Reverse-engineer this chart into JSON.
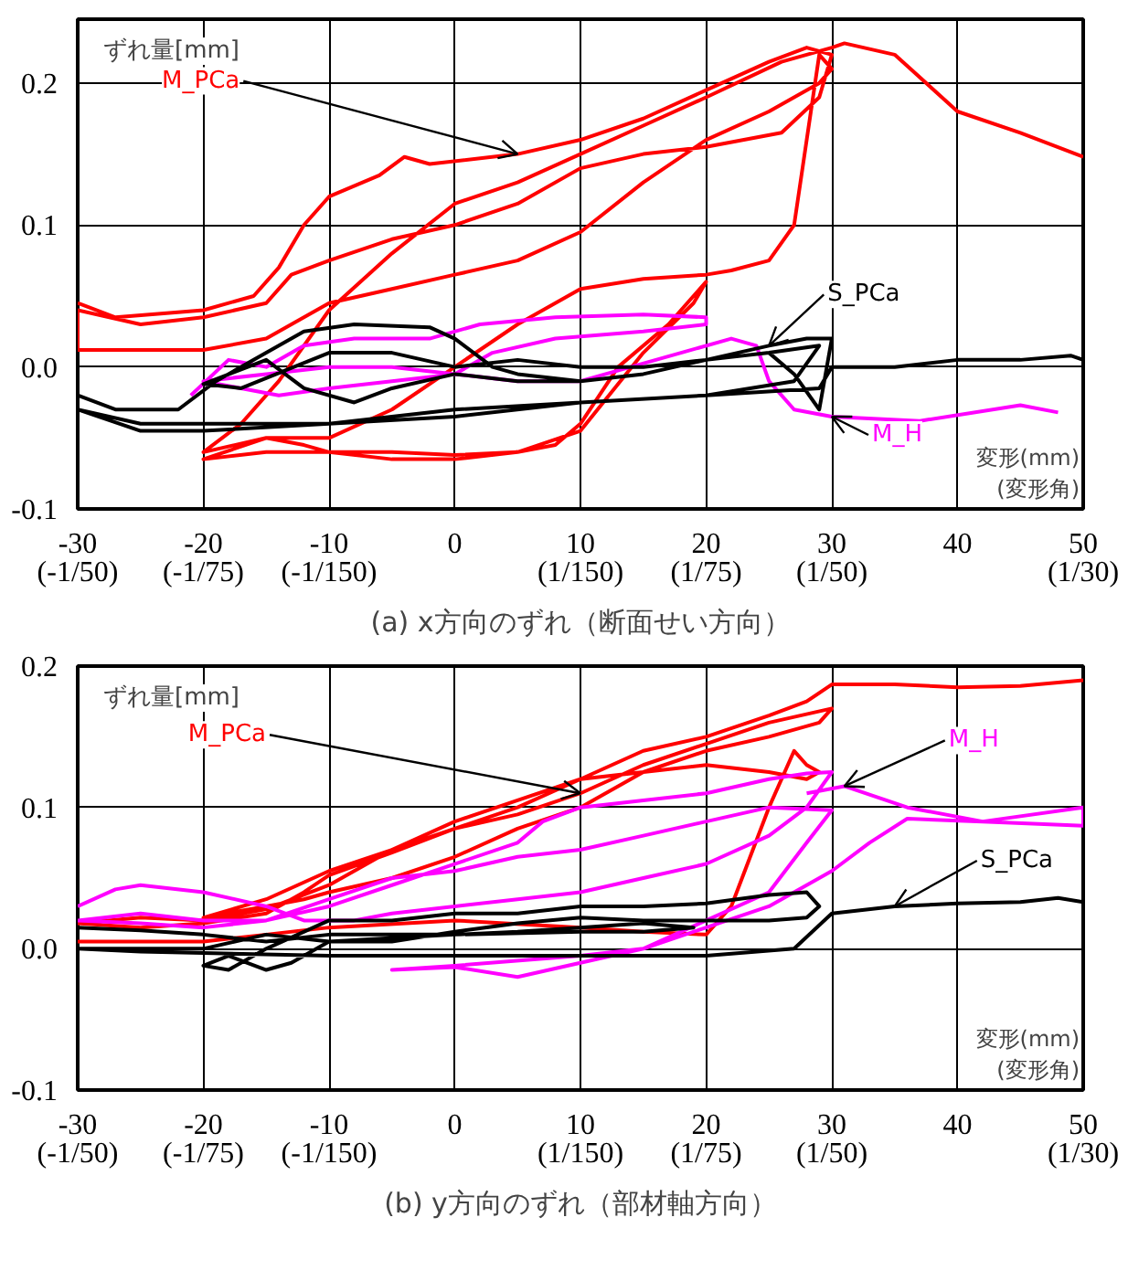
{
  "chart_data": [
    {
      "type": "line",
      "title": "(a) x方向のずれ（断面せい方向）",
      "xlabel": "変形(mm)\n(変形角)",
      "ylabel": "ずれ量[mm]",
      "xlim": [
        -30,
        50
      ],
      "ylim": [
        -0.1,
        0.245
      ],
      "xticks": [
        {
          "value": -30,
          "label": "-30\n(-1/50)"
        },
        {
          "value": -20,
          "label": "-20\n(-1/75)"
        },
        {
          "value": -10,
          "label": "-10\n(-1/150)"
        },
        0,
        {
          "value": 10,
          "label": "10\n(1/150)"
        },
        {
          "value": 20,
          "label": "20\n(1/75)"
        },
        {
          "value": 30,
          "label": "30\n(1/50)"
        },
        40,
        {
          "value": 50,
          "label": "50\n(1/30)"
        }
      ],
      "yticks": [
        -0.1,
        {
          "value": 0,
          "label": "0.0"
        },
        0.1,
        0.2
      ],
      "grid": true,
      "series": [
        {
          "color": "#ff0000",
          "x": [
            -30,
            -27,
            -20,
            -16,
            -14,
            -12,
            -10,
            -6,
            -4,
            -2,
            5,
            10,
            15,
            20,
            25,
            28,
            30,
            29,
            26,
            20,
            15,
            10,
            5,
            0,
            -5,
            -10,
            -13,
            -15,
            -20,
            -25,
            -30,
            -30,
            -20,
            -15,
            -10,
            -5,
            0,
            5,
            10,
            15,
            20,
            25,
            29,
            30,
            29,
            27,
            25,
            22,
            20,
            15,
            10,
            5,
            0,
            -5,
            -10,
            -15,
            -20,
            -15,
            -10,
            -5,
            0,
            5,
            8,
            10,
            13,
            17,
            20,
            19,
            15,
            10,
            5,
            0,
            -5,
            -10,
            -12,
            -15,
            -20,
            -17,
            -14,
            -10,
            -5,
            0,
            5,
            10,
            15,
            20,
            26,
            30,
            31,
            35,
            40,
            45,
            50
          ],
          "values": [
            0.045,
            0.035,
            0.04,
            0.05,
            0.07,
            0.1,
            0.12,
            0.135,
            0.148,
            0.143,
            0.15,
            0.16,
            0.175,
            0.195,
            0.215,
            0.225,
            0.22,
            0.19,
            0.165,
            0.155,
            0.15,
            0.14,
            0.115,
            0.1,
            0.09,
            0.075,
            0.065,
            0.045,
            0.035,
            0.03,
            0.04,
            0.012,
            0.012,
            0.02,
            0.045,
            0.055,
            0.065,
            0.075,
            0.095,
            0.13,
            0.16,
            0.18,
            0.2,
            0.21,
            0.22,
            0.1,
            0.075,
            0.068,
            0.065,
            0.062,
            0.055,
            0.03,
            0.0,
            -0.03,
            -0.05,
            -0.05,
            -0.065,
            -0.06,
            -0.06,
            -0.065,
            -0.065,
            -0.06,
            -0.055,
            -0.04,
            0.0,
            0.03,
            0.06,
            0.045,
            0.01,
            -0.045,
            -0.06,
            -0.062,
            -0.06,
            -0.06,
            -0.055,
            -0.05,
            -0.06,
            -0.04,
            -0.01,
            0.04,
            0.08,
            0.115,
            0.13,
            0.15,
            0.17,
            0.19,
            0.215,
            0.225,
            0.228,
            0.22,
            0.18,
            0.165,
            0.148
          ]
        },
        {
          "color": "#ff00ff",
          "x": [
            -21,
            -18,
            -15,
            -12,
            -8,
            -2,
            2,
            8,
            15,
            20,
            20,
            15,
            8,
            3,
            0,
            -5,
            -10,
            -14,
            -17,
            -20,
            -15,
            -10,
            -5,
            0,
            5,
            10,
            14,
            18,
            22,
            24,
            25,
            27,
            30,
            37,
            45,
            48
          ],
          "values": [
            -0.02,
            0.005,
            0.0,
            0.015,
            0.02,
            0.02,
            0.03,
            0.035,
            0.037,
            0.035,
            0.03,
            0.025,
            0.02,
            0.01,
            -0.005,
            -0.01,
            -0.015,
            -0.02,
            -0.015,
            -0.01,
            -0.005,
            0.0,
            0.0,
            -0.005,
            -0.01,
            -0.01,
            0.0,
            0.01,
            0.02,
            0.015,
            -0.01,
            -0.03,
            -0.035,
            -0.038,
            -0.027,
            -0.032
          ]
        },
        {
          "color": "#000000",
          "x": [
            -30,
            -27,
            -22,
            -19,
            -15,
            -12,
            -8,
            -2,
            0,
            3,
            5,
            10,
            15,
            20,
            25,
            28,
            30,
            29,
            27,
            25,
            20,
            15,
            10,
            5,
            0,
            -5,
            -8,
            -12,
            -15,
            -20,
            -17,
            -10,
            -5,
            0,
            5,
            10,
            15,
            20,
            25,
            29,
            27,
            20,
            10,
            0,
            -10,
            -20,
            -25,
            -30,
            -25,
            -20,
            -10,
            0,
            10,
            20,
            29,
            30,
            35,
            40,
            45,
            49,
            50
          ],
          "values": [
            -0.02,
            -0.03,
            -0.03,
            -0.01,
            0.01,
            0.025,
            0.03,
            0.028,
            0.02,
            0.0,
            -0.005,
            -0.01,
            -0.005,
            0.005,
            0.015,
            0.02,
            0.02,
            -0.03,
            -0.005,
            0.01,
            0.005,
            -0.005,
            -0.01,
            -0.01,
            -0.005,
            -0.015,
            -0.025,
            -0.015,
            0.005,
            -0.012,
            -0.015,
            0.01,
            0.01,
            0.0,
            0.005,
            0.0,
            0.0,
            0.005,
            0.01,
            0.015,
            -0.01,
            -0.02,
            -0.025,
            -0.03,
            -0.04,
            -0.045,
            -0.045,
            -0.03,
            -0.04,
            -0.04,
            -0.04,
            -0.035,
            -0.025,
            -0.02,
            -0.015,
            0.0,
            0.0,
            0.005,
            0.005,
            0.008,
            0.005
          ]
        }
      ],
      "annotations": [
        {
          "text": "M_PCa",
          "x": 5,
          "y": 0.15
        },
        {
          "text": "M_H",
          "x": 30,
          "y": -0.035
        },
        {
          "text": "S_PCa",
          "x": 25,
          "y": 0.015
        }
      ]
    },
    {
      "type": "line",
      "title": "(b) y方向のずれ（部材軸方向）",
      "xlabel": "変形(mm)\n(変形角)",
      "ylabel": "ずれ量[mm]",
      "xlim": [
        -30,
        50
      ],
      "ylim": [
        -0.1,
        0.2
      ],
      "xticks": [
        {
          "value": -30,
          "label": "-30\n(-1/50)"
        },
        {
          "value": -20,
          "label": "-20\n(-1/75)"
        },
        {
          "value": -10,
          "label": "-10\n(-1/150)"
        },
        0,
        {
          "value": 10,
          "label": "10\n(1/150)"
        },
        {
          "value": 20,
          "label": "20\n(1/75)"
        },
        {
          "value": 30,
          "label": "30\n(1/50)"
        },
        40,
        {
          "value": 50,
          "label": "50\n(1/30)"
        }
      ],
      "yticks": [
        -0.1,
        {
          "value": 0,
          "label": "0.0"
        },
        0.1,
        0.2
      ],
      "grid": true,
      "series": [
        {
          "color": "#ff0000",
          "x": [
            -30,
            -20,
            -15,
            -10,
            0,
            10,
            15,
            20,
            22,
            25,
            27,
            28,
            29,
            28,
            25,
            20,
            15,
            10,
            5,
            0,
            -5,
            -10,
            -12,
            -15,
            -20,
            -25,
            -30,
            -25,
            -20,
            -15,
            -10,
            -5,
            0,
            5,
            10,
            15,
            20,
            25,
            30,
            29,
            25,
            20,
            15,
            10,
            5,
            0,
            -5,
            -10,
            -12,
            -15,
            -20,
            -15,
            -10,
            -5,
            0,
            5,
            10,
            15,
            20,
            25,
            28,
            30,
            35,
            40,
            45,
            50
          ],
          "values": [
            0.005,
            0.005,
            0.01,
            0.015,
            0.02,
            0.015,
            0.012,
            0.01,
            0.03,
            0.1,
            0.14,
            0.13,
            0.125,
            0.12,
            0.125,
            0.13,
            0.125,
            0.12,
            0.1,
            0.085,
            0.068,
            0.052,
            0.04,
            0.025,
            0.018,
            0.015,
            0.018,
            0.022,
            0.02,
            0.028,
            0.045,
            0.07,
            0.085,
            0.095,
            0.11,
            0.13,
            0.145,
            0.16,
            0.17,
            0.16,
            0.15,
            0.14,
            0.125,
            0.1,
            0.085,
            0.065,
            0.05,
            0.04,
            0.035,
            0.03,
            0.022,
            0.035,
            0.055,
            0.07,
            0.09,
            0.105,
            0.12,
            0.14,
            0.15,
            0.165,
            0.175,
            0.187,
            0.187,
            0.185,
            0.186,
            0.19
          ]
        },
        {
          "color": "#ff00ff",
          "x": [
            -30,
            -27,
            -25,
            -20,
            -15,
            -12,
            -8,
            -5,
            0,
            5,
            10,
            15,
            20,
            25,
            28,
            30,
            28,
            25,
            20,
            15,
            10,
            7,
            5,
            0,
            -5,
            -10,
            -15,
            -20,
            -25,
            -30,
            -25,
            -20,
            -15,
            -10,
            -5,
            0,
            5,
            10,
            15,
            20,
            25,
            30,
            28,
            25,
            20,
            15,
            10,
            5,
            0,
            -5,
            0,
            10,
            15,
            20,
            25,
            30,
            33,
            36,
            42,
            50,
            50,
            42,
            36,
            31,
            28
          ],
          "values": [
            0.03,
            0.042,
            0.045,
            0.04,
            0.03,
            0.02,
            0.02,
            0.025,
            0.03,
            0.035,
            0.04,
            0.05,
            0.06,
            0.08,
            0.1,
            0.125,
            0.124,
            0.12,
            0.11,
            0.105,
            0.1,
            0.09,
            0.075,
            0.06,
            0.045,
            0.03,
            0.02,
            0.02,
            0.025,
            0.02,
            0.018,
            0.015,
            0.02,
            0.035,
            0.05,
            0.055,
            0.065,
            0.07,
            0.08,
            0.09,
            0.1,
            0.098,
            0.075,
            0.04,
            0.02,
            0.0,
            -0.01,
            -0.02,
            -0.013,
            -0.015,
            -0.012,
            -0.005,
            0.0,
            0.015,
            0.03,
            0.055,
            0.075,
            0.092,
            0.09,
            0.1,
            0.087,
            0.09,
            0.1,
            0.115,
            0.11
          ]
        },
        {
          "color": "#000000",
          "x": [
            -30,
            -25,
            -20,
            -15,
            -10,
            -5,
            0,
            5,
            10,
            15,
            19,
            15,
            10,
            0,
            -10,
            -13,
            -15,
            -18,
            -20,
            -18,
            -15,
            -10,
            -5,
            0,
            5,
            10,
            15,
            20,
            25,
            28,
            29,
            28,
            25,
            20,
            15,
            10,
            5,
            0,
            -5,
            -10,
            -15,
            -20,
            -25,
            -30,
            -25,
            -20,
            -10,
            0,
            10,
            20,
            27,
            30,
            35,
            40,
            45,
            48,
            50
          ],
          "values": [
            0.015,
            0.013,
            0.01,
            0.005,
            0.01,
            0.01,
            0.01,
            0.012,
            0.015,
            0.018,
            0.015,
            0.012,
            0.012,
            0.01,
            0.005,
            -0.01,
            -0.015,
            -0.005,
            -0.012,
            -0.015,
            0.0,
            0.02,
            0.02,
            0.025,
            0.025,
            0.03,
            0.03,
            0.032,
            0.038,
            0.04,
            0.03,
            0.022,
            0.02,
            0.02,
            0.02,
            0.022,
            0.018,
            0.012,
            0.005,
            0.005,
            0.01,
            0.0,
            0.0,
            0.0,
            -0.002,
            -0.003,
            -0.005,
            -0.005,
            -0.005,
            -0.005,
            0.0,
            0.025,
            0.03,
            0.032,
            0.033,
            0.036,
            0.033
          ]
        }
      ],
      "annotations": [
        {
          "text": "M_PCa",
          "x": 10,
          "y": 0.11
        },
        {
          "text": "M_H",
          "x": 31,
          "y": 0.115
        },
        {
          "text": "S_PCa",
          "x": 35,
          "y": 0.03
        }
      ]
    }
  ]
}
